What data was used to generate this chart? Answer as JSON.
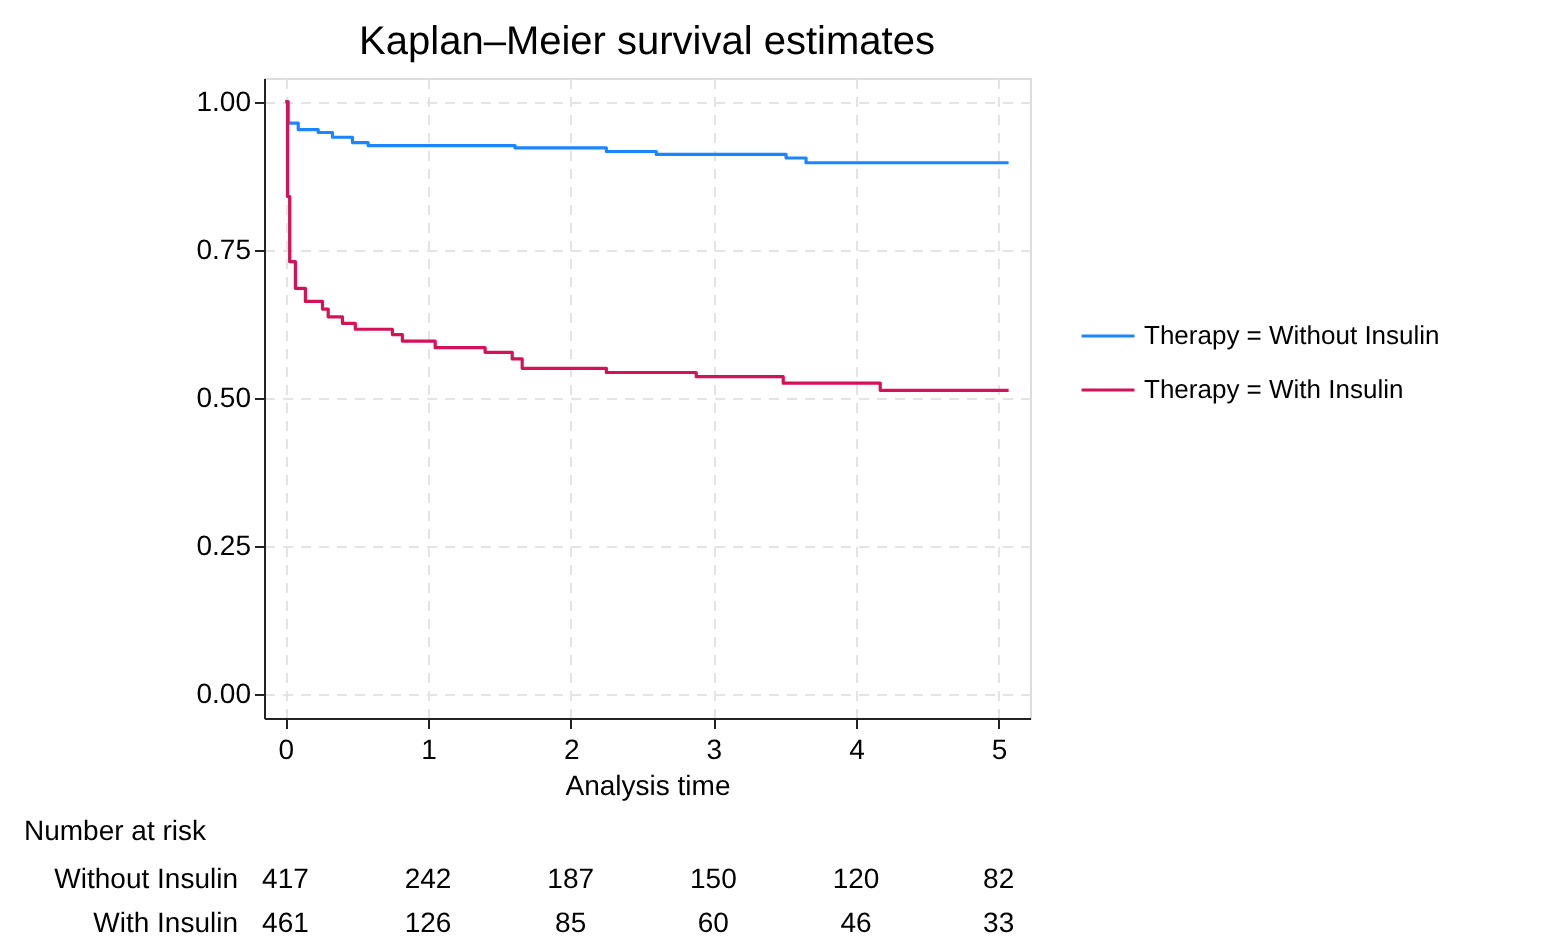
{
  "chart_data": {
    "type": "step",
    "title": "Kaplan–Meier survival estimates",
    "xlabel": "Analysis time",
    "series": [
      {
        "name": "Therapy = Without Insulin",
        "color": "#1a85ff",
        "x": [
          0,
          0.02,
          0.09,
          0.23,
          0.33,
          0.47,
          0.58,
          1.61,
          2.25,
          2.6,
          3.51,
          3.65,
          5.07
        ],
        "values": [
          1.0,
          0.964,
          0.953,
          0.948,
          0.94,
          0.931,
          0.926,
          0.922,
          0.916,
          0.911,
          0.905,
          0.897,
          0.897
        ]
      },
      {
        "name": "Therapy = With Insulin",
        "color": "#d41159",
        "x": [
          0,
          0.015,
          0.03,
          0.07,
          0.14,
          0.26,
          0.3,
          0.4,
          0.49,
          0.75,
          0.82,
          1.05,
          1.4,
          1.59,
          1.66,
          2.25,
          2.88,
          3.49,
          4.17,
          5.07
        ],
        "values": [
          1.0,
          0.84,
          0.73,
          0.685,
          0.663,
          0.65,
          0.637,
          0.626,
          0.616,
          0.607,
          0.596,
          0.585,
          0.577,
          0.566,
          0.55,
          0.543,
          0.536,
          0.525,
          0.513,
          0.513
        ]
      }
    ],
    "xlim": [
      -0.15,
      5.22
    ],
    "xticks": [
      0,
      1,
      2,
      3,
      4,
      5
    ],
    "ylim": [
      -0.04,
      1.04
    ],
    "yticks": [
      {
        "value": 0,
        "label": "0.00"
      },
      {
        "value": 0.25,
        "label": "0.25"
      },
      {
        "value": 0.5,
        "label": "0.50"
      },
      {
        "value": 0.75,
        "label": "0.75"
      },
      {
        "value": 1,
        "label": "1.00"
      }
    ],
    "grid": true,
    "legend": "right",
    "line_style": "solid",
    "marker": "none",
    "annotations": [
      "Number at risk",
      "Without Insulin",
      "417",
      "242",
      "187",
      "150",
      "120",
      "82",
      "With Insulin",
      "461",
      "126",
      "85",
      "60",
      "46",
      "33"
    ]
  }
}
